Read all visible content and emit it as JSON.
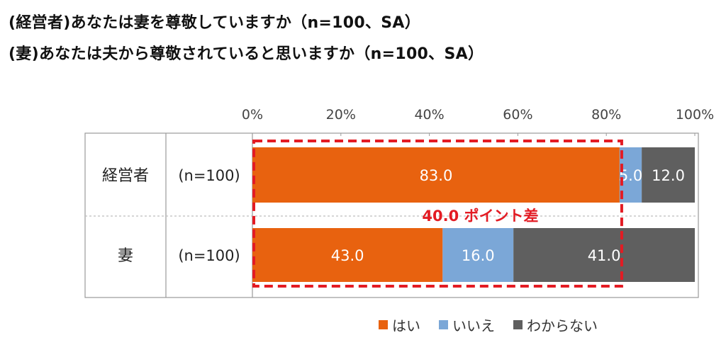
{
  "titles": [
    "(経営者)あなたは妻を尊敬していますか（n=100、SA）",
    "(妻)あなたは夫から尊敬されていると思いますか（n=100、SA）"
  ],
  "annotation": "40.0 ポイント差",
  "colors": {
    "はい": "#E8620F",
    "いいえ": "#7BA7D7",
    "わからない": "#5F5F5F",
    "annotation": "#E31B23"
  },
  "chart_data": {
    "type": "bar",
    "orientation": "horizontal",
    "stacked": true,
    "title": "",
    "xlabel": "",
    "ylabel": "",
    "xlim": [
      0,
      100
    ],
    "x_ticks": [
      "0%",
      "20%",
      "40%",
      "60%",
      "80%",
      "100%"
    ],
    "x_axis_position": "top",
    "categories": [
      "経営者",
      "妻"
    ],
    "category_sublabels": [
      "(n=100)",
      "(n=100)"
    ],
    "series": [
      {
        "name": "はい",
        "values": [
          83.0,
          43.0
        ],
        "labels": [
          "83.0",
          "43.0"
        ]
      },
      {
        "name": "いいえ",
        "values": [
          5.0,
          16.0
        ],
        "labels": [
          "5.0",
          "16.0"
        ]
      },
      {
        "name": "わからない",
        "values": [
          12.0,
          41.0
        ],
        "labels": [
          "12.0",
          "41.0"
        ]
      }
    ],
    "legend": "bottom",
    "grid": false
  }
}
